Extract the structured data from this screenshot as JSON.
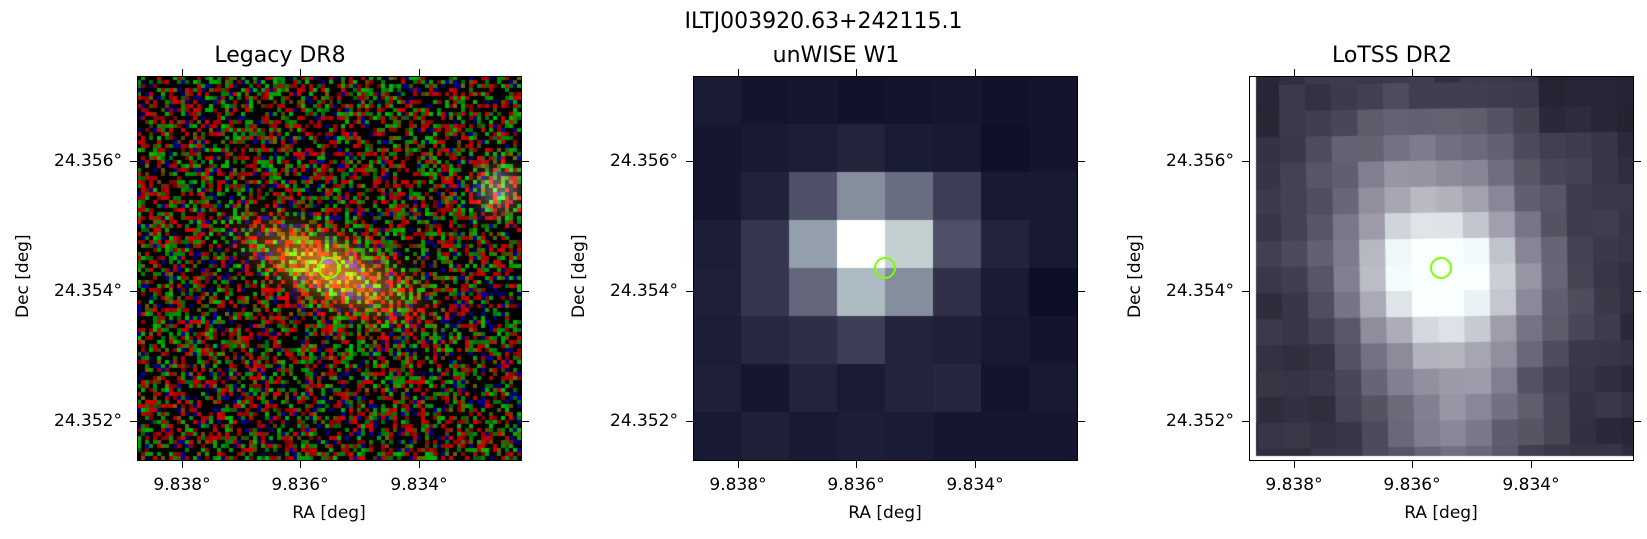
{
  "figure": {
    "title": "ILTJ003920.63+242115.1",
    "marker_color": "#7fff00"
  },
  "panels": [
    {
      "title": "Legacy DR8",
      "kind": "rgb-noise-galaxy",
      "xlabel": "RA [deg]",
      "ylabel": "Dec [deg]",
      "xticks": [
        "9.838°",
        "9.836°",
        "9.834°"
      ],
      "yticks": [
        "24.356°",
        "24.354°",
        "24.352°"
      ]
    },
    {
      "title": "unWISE W1",
      "kind": "coarse-grey",
      "xlabel": "RA [deg]",
      "ylabel": "Dec [deg]",
      "xticks": [
        "9.838°",
        "9.836°",
        "9.834°"
      ],
      "yticks": [
        "24.356°",
        "24.354°",
        "24.352°"
      ]
    },
    {
      "title": "LoTSS DR2",
      "kind": "radio-bone",
      "xlabel": "RA [deg]",
      "ylabel": "Dec [deg]",
      "xticks": [
        "9.838°",
        "9.836°",
        "9.834°"
      ],
      "yticks": [
        "24.356°",
        "24.354°",
        "24.352°"
      ]
    }
  ]
}
